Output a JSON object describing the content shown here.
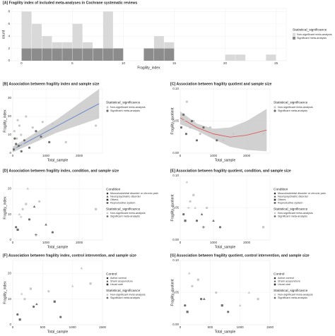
{
  "chart_data": [
    {
      "type": "histogram",
      "title": "[A] Fragility index of included meta-analyses in Cochrane systematic reviews",
      "x_label": "Fragility_index",
      "y_label": "count",
      "bins": [
        0,
        1,
        2,
        3,
        4,
        5,
        6,
        7,
        8,
        9,
        10,
        11,
        12,
        13,
        14,
        15,
        16,
        17,
        18,
        19,
        20,
        21,
        22,
        23,
        24,
        25
      ],
      "xlim": [
        -1,
        26
      ],
      "xticks": [
        0,
        5,
        10,
        15,
        20,
        25
      ],
      "ylim": [
        0,
        8.5
      ],
      "yticks": [
        0,
        2,
        4,
        6,
        8
      ],
      "legend_title": "Statistical_significance",
      "series": [
        {
          "name": "Significant meta-analysis",
          "color": "#8c8c8c",
          "values": [
            2,
            2,
            2,
            2,
            2,
            2,
            2,
            2,
            2,
            2,
            0,
            0,
            2,
            2,
            2,
            0,
            0,
            0,
            0,
            0,
            0,
            0,
            0,
            0,
            0
          ]
        },
        {
          "name": "Non-significant meta-analysis",
          "color": "#d9d9d9",
          "values": [
            6,
            4,
            2,
            1,
            1,
            4,
            1,
            0,
            6,
            0,
            0,
            0,
            0,
            2,
            1,
            0,
            0,
            0,
            0,
            0,
            1,
            1,
            0,
            0,
            1
          ]
        }
      ]
    },
    {
      "type": "scatter",
      "title": "[B] Association between fragility index and sample size",
      "x_label": "Total_sample",
      "y_label": "Fragility_index",
      "xlim": [
        0,
        2700
      ],
      "xticks": [
        0,
        1000,
        2000
      ],
      "ylim": [
        0,
        35
      ],
      "yticks": [
        0,
        10,
        20,
        30
      ],
      "legend_title": "Statistical_significance",
      "series": [
        {
          "name": "Non-significant meta-analysis",
          "color": "#c8c8c8",
          "x": [
            50,
            120,
            200,
            300,
            150,
            400,
            600,
            80,
            250,
            900,
            1200,
            1600,
            2500
          ],
          "values": [
            12,
            8,
            15,
            5,
            18,
            20,
            14,
            3,
            10,
            17,
            16,
            6,
            15
          ]
        },
        {
          "name": "Significant meta-analysis",
          "color": "#6e6e6e",
          "x": [
            30,
            100,
            180,
            350,
            500,
            700,
            850,
            1100,
            260,
            60
          ],
          "values": [
            2,
            5,
            4,
            7,
            3,
            12,
            9,
            6,
            1,
            8
          ]
        }
      ],
      "fit": {
        "color": "#4a74c9",
        "x": [
          0,
          1300,
          2600
        ],
        "values": [
          2,
          14.5,
          27
        ],
        "lower": [
          0.5,
          11,
          19
        ],
        "upper": [
          3.5,
          18,
          35
        ]
      }
    },
    {
      "type": "scatter",
      "title": "[C] Association between fragility quotient and sample size",
      "x_label": "Total_sample",
      "y_label": "Fragility_quotient",
      "xlim": [
        0,
        2700
      ],
      "xticks": [
        0,
        1000,
        2000
      ],
      "ylim": [
        0,
        0.1
      ],
      "yticks": [
        {
          "value": 0,
          "label": "0.00"
        },
        {
          "value": 0.05,
          "label": "0.05"
        },
        {
          "value": 0.1,
          "label": "0.10"
        }
      ],
      "legend_title": "Statistical_significance",
      "series": [
        {
          "name": "Non-significant meta-analysis",
          "color": "#c8c8c8",
          "x": [
            50,
            120,
            200,
            300,
            400,
            600,
            900,
            1300,
            1600,
            2500
          ],
          "values": [
            0.06,
            0.05,
            0.08,
            0.04,
            0.05,
            0.03,
            0.04,
            0.02,
            0.03,
            0.03
          ]
        },
        {
          "name": "Significant meta-analysis",
          "color": "#6e6e6e",
          "x": [
            30,
            100,
            180,
            350,
            500,
            700,
            1100
          ],
          "values": [
            0.04,
            0.06,
            0.03,
            0.05,
            0.02,
            0.04,
            0.02
          ]
        }
      ],
      "fit": {
        "color": "#e04848",
        "x": [
          0,
          500,
          1000,
          1500,
          2000,
          2600
        ],
        "values": [
          0.055,
          0.04,
          0.03,
          0.025,
          0.028,
          0.036
        ],
        "lower": [
          0.045,
          0.035,
          0.022,
          0.01,
          0.005,
          0.003
        ],
        "upper": [
          0.065,
          0.046,
          0.038,
          0.04,
          0.05,
          0.069
        ]
      }
    },
    {
      "type": "shape-scatter",
      "title": "[D] Association between fragility index, condition, and sample size",
      "x_label": "Total_sample",
      "y_label": "Fragility_index",
      "xlim": [
        0,
        2700
      ],
      "xticks": [
        0,
        1000,
        2000
      ],
      "ylim": [
        0,
        25
      ],
      "yticks": [
        0,
        10,
        20
      ],
      "legend_title": "Condition",
      "significance_title": "Statistical_significance",
      "significance": [
        {
          "name": "Non-significant meta-analysis",
          "color": "#c8c8c8"
        },
        {
          "name": "Significant meta-analysis",
          "color": "#6e6e6e"
        }
      ],
      "series": [
        {
          "name": "Musculoskeletal disorder or chronic pain",
          "shape": "circle",
          "x": [
            100,
            300,
            500,
            800,
            1200
          ],
          "values": [
            5,
            12,
            8,
            15,
            3
          ],
          "significant": [
            1,
            0,
            1,
            0,
            1
          ]
        },
        {
          "name": "Neuropsychiatric disorder",
          "shape": "triangle",
          "x": [
            200,
            450,
            650,
            1000
          ],
          "values": [
            10,
            20,
            13,
            6
          ],
          "significant": [
            0,
            0,
            1,
            1
          ]
        },
        {
          "name": "Others",
          "shape": "square",
          "x": [
            150,
            400,
            2500
          ],
          "values": [
            4,
            14,
            12
          ],
          "significant": [
            1,
            0,
            0
          ]
        },
        {
          "name": "Reproductive system",
          "shape": "plus",
          "x": [
            250,
            700
          ],
          "values": [
            9,
            2
          ],
          "significant": [
            0,
            1
          ]
        }
      ]
    },
    {
      "type": "shape-scatter",
      "title": "[E] Association between fragility quotient, condition, and sample size",
      "x_label": "Total_sample",
      "y_label": "Fragility_quotient",
      "xlim": [
        0,
        2700
      ],
      "xticks": [
        0,
        1000,
        2000
      ],
      "ylim": [
        0,
        0.1
      ],
      "yticks": [
        {
          "value": 0,
          "label": "0.00"
        },
        {
          "value": 0.05,
          "label": "0.05"
        },
        {
          "value": 0.1,
          "label": "0.10"
        }
      ],
      "legend_title": "Condition",
      "significance_title": "Statistical_significance",
      "significance": [
        {
          "name": "Non-significant meta-analysis",
          "color": "#c8c8c8"
        },
        {
          "name": "Significant meta-analysis",
          "color": "#6e6e6e"
        }
      ],
      "series": [
        {
          "name": "Musculoskeletal disorder or chronic pain",
          "shape": "circle",
          "x": [
            100,
            300,
            500,
            800,
            1200
          ],
          "values": [
            0.04,
            0.06,
            0.03,
            0.05,
            0.02
          ],
          "significant": [
            1,
            0,
            1,
            0,
            1
          ]
        },
        {
          "name": "Neuropsychiatric disorder",
          "shape": "triangle",
          "x": [
            200,
            450,
            650,
            1000
          ],
          "values": [
            0.09,
            0.05,
            0.04,
            0.03
          ],
          "significant": [
            0,
            0,
            1,
            1
          ]
        },
        {
          "name": "Others",
          "shape": "square",
          "x": [
            150,
            400,
            2500
          ],
          "values": [
            0.03,
            0.07,
            0.02
          ],
          "significant": [
            1,
            0,
            0
          ]
        },
        {
          "name": "Reproductive system",
          "shape": "plus",
          "x": [
            250,
            700
          ],
          "values": [
            0.05,
            0.02
          ],
          "significant": [
            0,
            1
          ]
        }
      ]
    },
    {
      "type": "shape-scatter",
      "title": "[F] Association between fragility index, control intervention, and sample size",
      "x_label": "Total_sample",
      "y_label": "Fragility_index",
      "xlim": [
        0,
        1500
      ],
      "xticks": [
        0,
        500,
        1000,
        1500
      ],
      "ylim": [
        0,
        25
      ],
      "yticks": [
        0,
        10,
        20
      ],
      "legend_title": "Control",
      "significance_title": "Statistical_significance",
      "significance": [
        {
          "name": "Non-significant meta-analysis",
          "color": "#c8c8c8"
        },
        {
          "name": "Significant meta-analysis",
          "color": "#6e6e6e"
        }
      ],
      "series": [
        {
          "name": "Active control",
          "shape": "circle",
          "x": [
            80,
            200,
            350,
            600,
            800
          ],
          "values": [
            4,
            10,
            7,
            13,
            3
          ],
          "significant": [
            1,
            0,
            1,
            0,
            1
          ]
        },
        {
          "name": "Sham acupuncture",
          "shape": "triangle",
          "x": [
            150,
            400,
            1150,
            1000
          ],
          "values": [
            12,
            8,
            22,
            15
          ],
          "significant": [
            0,
            1,
            0,
            0
          ]
        },
        {
          "name": "Usual care",
          "shape": "square",
          "x": [
            120,
            300,
            700,
            1300
          ],
          "values": [
            2,
            14,
            9,
            16
          ],
          "significant": [
            1,
            0,
            1,
            0
          ]
        }
      ]
    },
    {
      "type": "shape-scatter",
      "title": "[G] Association between fragility quotient, control intervention, and sample size",
      "x_label": "Total_sample",
      "y_label": "Fragility_quotient",
      "xlim": [
        0,
        1500
      ],
      "xticks": [
        0,
        500,
        1000,
        1500
      ],
      "ylim": [
        0,
        0.1
      ],
      "yticks": [
        {
          "value": 0,
          "label": "0.00"
        },
        {
          "value": 0.05,
          "label": "0.05"
        },
        {
          "value": 0.1,
          "label": "0.10"
        }
      ],
      "legend_title": "Control",
      "significance_title": "Statistical_significance",
      "significance": [
        {
          "name": "Non-significant meta-analysis",
          "color": "#c8c8c8"
        },
        {
          "name": "Significant meta-analysis",
          "color": "#6e6e6e"
        }
      ],
      "series": [
        {
          "name": "Active control",
          "shape": "circle",
          "x": [
            80,
            200,
            350,
            600,
            800
          ],
          "values": [
            0.03,
            0.06,
            0.04,
            0.05,
            0.02
          ],
          "significant": [
            1,
            0,
            1,
            0,
            1
          ]
        },
        {
          "name": "Sham acupuncture",
          "shape": "triangle",
          "x": [
            150,
            400,
            1150,
            1000
          ],
          "values": [
            0.08,
            0.04,
            0.05,
            0.03
          ],
          "significant": [
            0,
            1,
            0,
            0
          ]
        },
        {
          "name": "Usual care",
          "shape": "square",
          "x": [
            120,
            300,
            700,
            1300
          ],
          "values": [
            0.02,
            0.07,
            0.03,
            0.04
          ],
          "significant": [
            1,
            0,
            1,
            0
          ]
        }
      ]
    }
  ]
}
